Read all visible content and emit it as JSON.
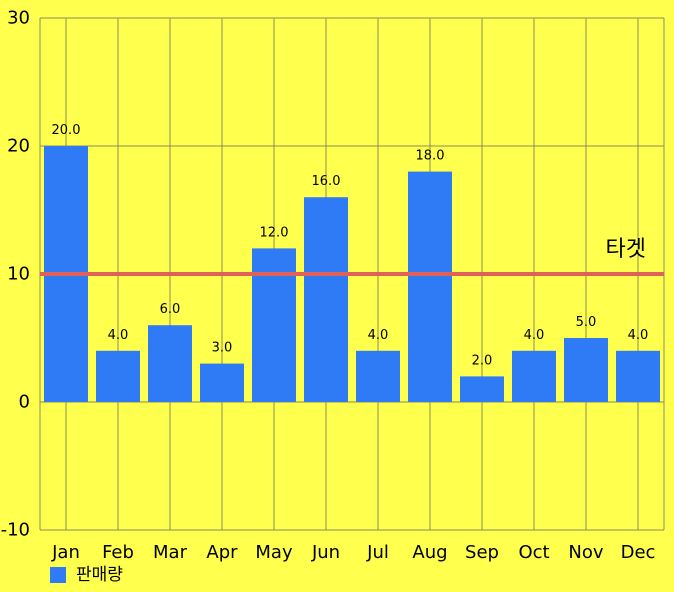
{
  "colors": {
    "background": "#FFFF4D",
    "bar": "#2F7BF5",
    "target_line": "#E0605A",
    "grid": "#8C8C5A",
    "text": "#000000"
  },
  "chart_data": {
    "type": "bar",
    "categories": [
      "Jan",
      "Feb",
      "Mar",
      "Apr",
      "May",
      "Jun",
      "Jul",
      "Aug",
      "Sep",
      "Oct",
      "Nov",
      "Dec"
    ],
    "series": [
      {
        "name": "판매량",
        "values": [
          20,
          4,
          6,
          3,
          12,
          16,
          4,
          18,
          2,
          4,
          5,
          4
        ],
        "data_labels": [
          "20.0",
          "4.0",
          "6.0",
          "3.0",
          "12.0",
          "16.0",
          "4.0",
          "18.0",
          "2.0",
          "4.0",
          "5.0",
          "4.0"
        ]
      }
    ],
    "ylim": [
      -10,
      30
    ],
    "yticks": [
      -10,
      0,
      10,
      20,
      30
    ],
    "ytick_labels": [
      "-10",
      "0",
      "10",
      "20",
      "30"
    ],
    "grid": true,
    "legend": {
      "position": "bottom-left"
    },
    "limit_line": {
      "value": 10,
      "label": "타겟"
    },
    "title": "",
    "xlabel": "",
    "ylabel": ""
  }
}
